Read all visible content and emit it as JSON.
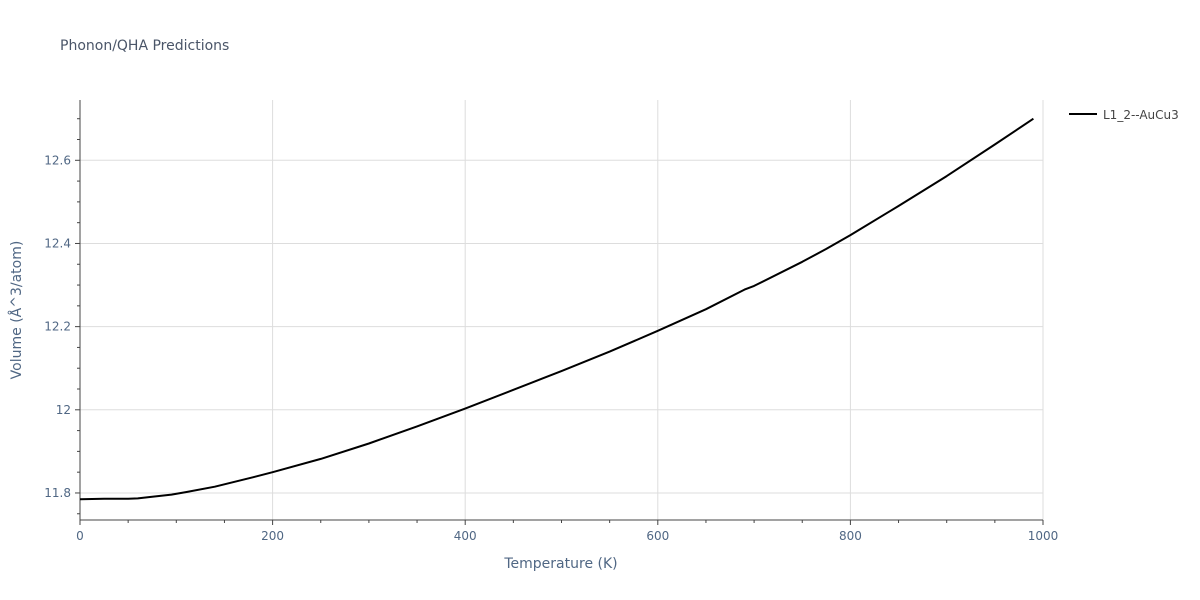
{
  "chart_data": {
    "type": "line",
    "title": "Phonon/QHA Predictions",
    "xlabel": "Temperature (K)",
    "ylabel": "Volume (Å^3/atom)",
    "xlim": [
      0,
      1000
    ],
    "ylim": [
      11.735,
      12.745
    ],
    "x_ticks": [
      0,
      200,
      400,
      600,
      800,
      1000
    ],
    "x_tick_labels": [
      "0",
      "200",
      "400",
      "600",
      "800",
      "1000"
    ],
    "x_minor_ticks": [
      50,
      100,
      150,
      250,
      300,
      350,
      450,
      500,
      550,
      650,
      700,
      750,
      850,
      900,
      950
    ],
    "y_ticks": [
      11.8,
      12.0,
      12.2,
      12.4,
      12.6
    ],
    "y_tick_labels": [
      "11.8",
      "12",
      "12.2",
      "12.4",
      "12.6"
    ],
    "y_minor_ticks": [
      11.75,
      11.85,
      11.9,
      11.95,
      12.05,
      12.1,
      12.15,
      12.25,
      12.3,
      12.35,
      12.45,
      12.5,
      12.55,
      12.65,
      12.7
    ],
    "grid": true,
    "legend_position": "top-right",
    "series": [
      {
        "name": "L1_2--AuCu3",
        "color": "#000000",
        "x": [
          0,
          25,
          50,
          60,
          75,
          95,
          110,
          140,
          180,
          200,
          250,
          300,
          350,
          400,
          450,
          480,
          500,
          550,
          600,
          650,
          690,
          700,
          750,
          775,
          800,
          850,
          900,
          950,
          990
        ],
        "y": [
          11.785,
          11.786,
          11.786,
          11.787,
          11.791,
          11.796,
          11.802,
          11.815,
          11.838,
          11.85,
          11.882,
          11.919,
          11.96,
          12.003,
          12.048,
          12.075,
          12.093,
          12.14,
          12.19,
          12.242,
          12.289,
          12.298,
          12.356,
          12.387,
          12.42,
          12.49,
          12.562,
          12.638,
          12.7
        ]
      }
    ]
  }
}
